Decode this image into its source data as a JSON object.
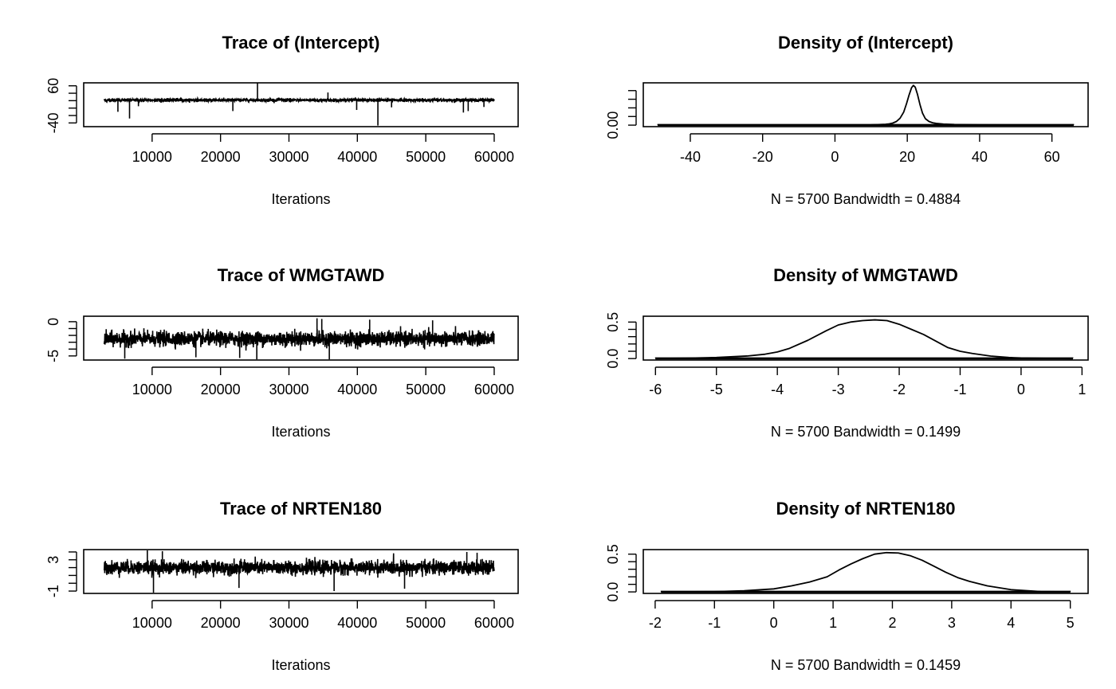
{
  "figure": {
    "background": "#ffffff",
    "line_color": "#000000"
  },
  "chart_data": [
    {
      "id": "trace-intercept",
      "type": "line",
      "title": "Trace of (Intercept)",
      "xlabel": "Iterations",
      "xlim": [
        0,
        63500
      ],
      "xticks": [
        10000,
        20000,
        30000,
        40000,
        50000,
        60000
      ],
      "ylim": [
        -50,
        68
      ],
      "yticks": [
        -40,
        -20,
        0,
        20,
        40,
        60
      ],
      "ytick_labels": [
        "-40",
        "",
        "",
        "",
        "",
        "60"
      ],
      "trace": {
        "x_start": 3000,
        "x_end": 60000,
        "center": 21.5,
        "spread": 4.5,
        "spikes": [
          {
            "x": 5000,
            "y": -10
          },
          {
            "x": 6700,
            "y": -28
          },
          {
            "x": 8000,
            "y": 5
          },
          {
            "x": 21800,
            "y": -8
          },
          {
            "x": 25400,
            "y": 67
          },
          {
            "x": 35700,
            "y": 42
          },
          {
            "x": 39900,
            "y": -5
          },
          {
            "x": 43000,
            "y": -47
          },
          {
            "x": 45000,
            "y": 2
          },
          {
            "x": 55500,
            "y": -12
          },
          {
            "x": 56200,
            "y": -8
          },
          {
            "x": 58500,
            "y": 3
          }
        ]
      }
    },
    {
      "id": "density-intercept",
      "type": "area",
      "title": "Density of (Intercept)",
      "xlabel": "N = 5700   Bandwidth = 0.4884",
      "xlim": [
        -53,
        70
      ],
      "xticks": [
        -40,
        -20,
        0,
        20,
        40,
        60
      ],
      "ylim": [
        -0.0035,
        0.098
      ],
      "yticks": [
        0.0,
        0.02,
        0.04,
        0.06,
        0.08
      ],
      "ytick_labels": [
        "0.00",
        "",
        "",
        "",
        ""
      ],
      "rug_range": [
        -49,
        66
      ],
      "density": {
        "x": [
          -49,
          -20,
          0,
          10,
          12,
          14,
          15,
          16,
          17,
          18,
          19,
          19.8,
          20.5,
          21.2,
          21.7,
          22.2,
          22.8,
          23.5,
          24.2,
          25,
          26,
          27,
          28,
          30,
          33,
          40,
          66
        ],
        "y": [
          0,
          0,
          0.0002,
          0.0007,
          0.0012,
          0.002,
          0.003,
          0.0048,
          0.0085,
          0.016,
          0.03,
          0.05,
          0.07,
          0.087,
          0.092,
          0.088,
          0.072,
          0.048,
          0.028,
          0.015,
          0.0085,
          0.0055,
          0.004,
          0.0025,
          0.0015,
          0.0005,
          0
        ]
      }
    },
    {
      "id": "trace-wmgtawd",
      "type": "line",
      "title": "Trace of WMGTAWD",
      "xlabel": "Iterations",
      "xlim": [
        0,
        63500
      ],
      "xticks": [
        10000,
        20000,
        30000,
        40000,
        50000,
        60000
      ],
      "ylim": [
        -5.6,
        0.8
      ],
      "yticks": [
        -5,
        -4,
        -3,
        -2,
        -1,
        0
      ],
      "ytick_labels": [
        "-5",
        "",
        "",
        "",
        "",
        "0"
      ],
      "trace": {
        "x_start": 3000,
        "x_end": 60000,
        "center": -2.5,
        "spread": 1.15,
        "spikes": [
          {
            "x": 6000,
            "y": -5.4
          },
          {
            "x": 16400,
            "y": -5.2
          },
          {
            "x": 22800,
            "y": -5.3
          },
          {
            "x": 25300,
            "y": -5.5
          },
          {
            "x": 34100,
            "y": 0.5
          },
          {
            "x": 34800,
            "y": 0.4
          },
          {
            "x": 35900,
            "y": -5.5
          },
          {
            "x": 41800,
            "y": 0.3
          },
          {
            "x": 51000,
            "y": 0.2
          }
        ]
      }
    },
    {
      "id": "density-wmgtawd",
      "type": "area",
      "title": "Density of WMGTAWD",
      "xlabel": "N = 5700   Bandwidth = 0.1499",
      "xlim": [
        -6.2,
        1.1
      ],
      "xticks": [
        -6,
        -5,
        -4,
        -3,
        -2,
        -1,
        0,
        1
      ],
      "ylim": [
        -0.02,
        0.58
      ],
      "yticks": [
        0.0,
        0.1,
        0.2,
        0.3,
        0.4,
        0.5
      ],
      "ytick_labels": [
        "0.0",
        "",
        "",
        "",
        "",
        "0.5"
      ],
      "rug_range": [
        -6,
        0.85
      ],
      "density": {
        "x": [
          -6,
          -5.5,
          -5,
          -4.5,
          -4.2,
          -4,
          -3.8,
          -3.5,
          -3.2,
          -3,
          -2.8,
          -2.6,
          -2.4,
          -2.2,
          -2,
          -1.8,
          -1.6,
          -1.4,
          -1.2,
          -1,
          -0.8,
          -0.5,
          -0.2,
          0,
          0.5,
          0.85
        ],
        "y": [
          0,
          0.005,
          0.015,
          0.035,
          0.06,
          0.09,
          0.14,
          0.25,
          0.38,
          0.46,
          0.5,
          0.52,
          0.53,
          0.52,
          0.47,
          0.4,
          0.33,
          0.24,
          0.15,
          0.1,
          0.07,
          0.035,
          0.015,
          0.008,
          0.002,
          0
        ]
      }
    },
    {
      "id": "trace-nrten180",
      "type": "line",
      "title": "Trace of NRTEN180",
      "xlabel": "Iterations",
      "xlim": [
        0,
        63500
      ],
      "xticks": [
        10000,
        20000,
        30000,
        40000,
        50000,
        60000
      ],
      "ylim": [
        -1.3,
        4.3
      ],
      "yticks": [
        -1,
        0,
        1,
        2,
        3,
        4
      ],
      "ytick_labels": [
        "-1",
        "",
        "",
        "",
        "3",
        ""
      ],
      "trace": {
        "x_start": 3000,
        "x_end": 60000,
        "center": 2.0,
        "spread": 0.95,
        "spikes": [
          {
            "x": 9300,
            "y": 4.2
          },
          {
            "x": 10200,
            "y": -1.2
          },
          {
            "x": 11500,
            "y": 4.1
          },
          {
            "x": 22700,
            "y": -0.6
          },
          {
            "x": 36600,
            "y": -1.0
          },
          {
            "x": 46900,
            "y": -0.7
          },
          {
            "x": 56000,
            "y": 4.0
          },
          {
            "x": 57500,
            "y": 3.9
          }
        ]
      }
    },
    {
      "id": "density-nrten180",
      "type": "area",
      "title": "Density of NRTEN180",
      "xlabel": "N = 5700   Bandwidth = 0.1459",
      "xlim": [
        -2.2,
        5.3
      ],
      "xticks": [
        -2,
        -1,
        0,
        1,
        2,
        3,
        4,
        5
      ],
      "ylim": [
        -0.02,
        0.56
      ],
      "yticks": [
        0.0,
        0.1,
        0.2,
        0.3,
        0.4,
        0.5
      ],
      "ytick_labels": [
        "0.0",
        "",
        "",
        "",
        "",
        "0.5"
      ],
      "rug_range": [
        -1.9,
        5.0
      ],
      "density": {
        "x": [
          -1.9,
          -1,
          -0.5,
          0,
          0.3,
          0.6,
          0.9,
          1.1,
          1.3,
          1.5,
          1.7,
          1.9,
          2.1,
          2.3,
          2.5,
          2.7,
          2.9,
          3.1,
          3.3,
          3.6,
          4,
          4.5,
          5
        ],
        "y": [
          0,
          0.004,
          0.015,
          0.04,
          0.08,
          0.13,
          0.2,
          0.29,
          0.37,
          0.44,
          0.5,
          0.52,
          0.515,
          0.48,
          0.42,
          0.34,
          0.26,
          0.19,
          0.14,
          0.08,
          0.03,
          0.005,
          0
        ]
      }
    }
  ]
}
